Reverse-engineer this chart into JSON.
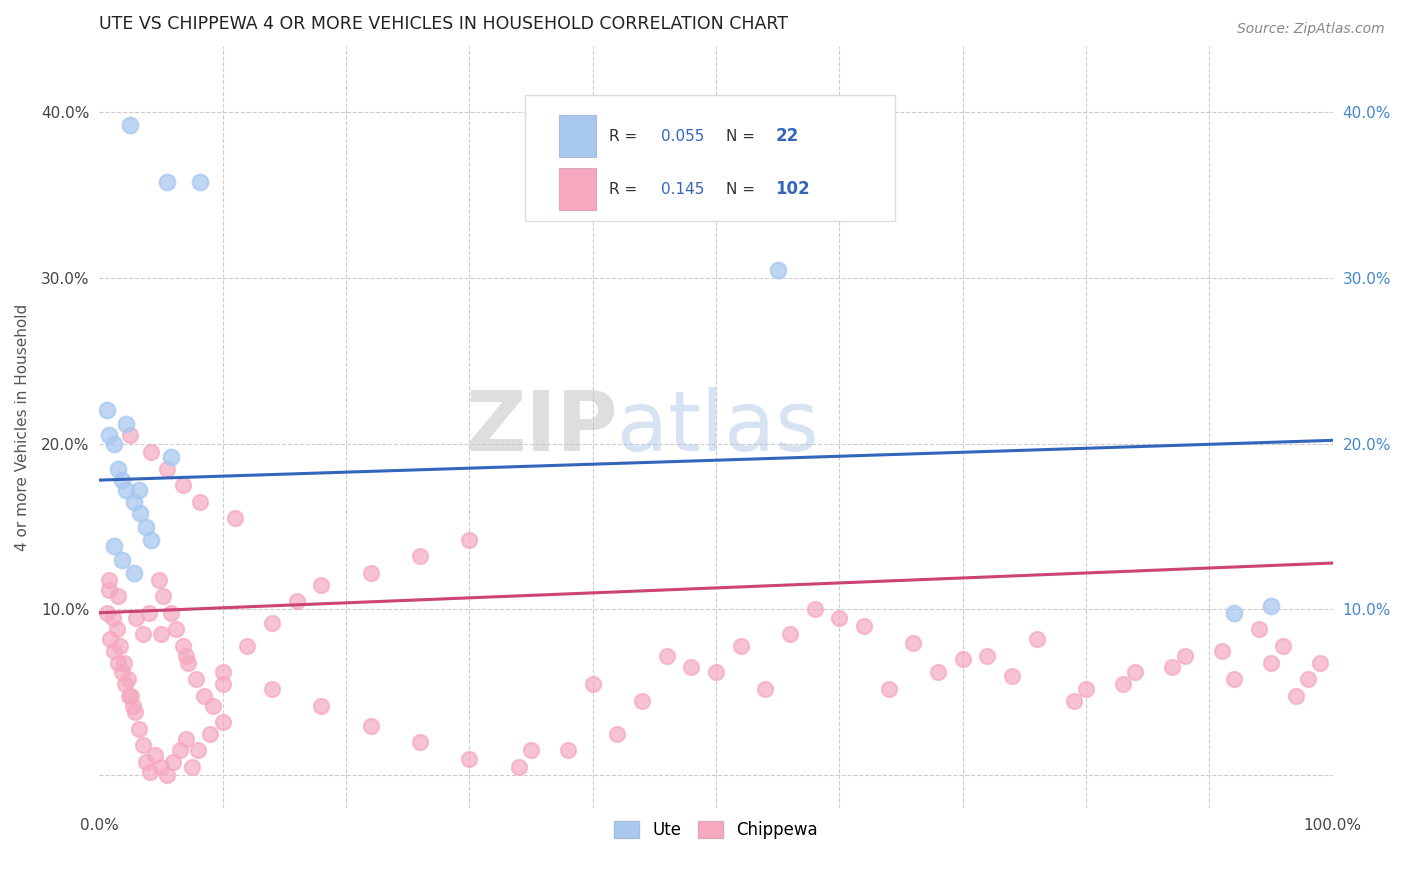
{
  "title": "UTE VS CHIPPEWA 4 OR MORE VEHICLES IN HOUSEHOLD CORRELATION CHART",
  "source": "Source: ZipAtlas.com",
  "ylabel": "4 or more Vehicles in Household",
  "xlim": [
    0,
    1.0
  ],
  "ylim": [
    -0.02,
    0.44
  ],
  "background_color": "#ffffff",
  "grid_color": "#cccccc",
  "legend_R1": "0.055",
  "legend_N1": "22",
  "legend_R2": "0.145",
  "legend_N2": "102",
  "ute_color": "#a8c8f0",
  "chippewa_color": "#f5a8be",
  "ute_line_color": "#3366bb",
  "chippewa_line_color": "#cc4477",
  "ute_line_start": 0.178,
  "ute_line_end": 0.202,
  "chip_line_start": 0.098,
  "chip_line_end": 0.128,
  "ute_x": [
    0.025,
    0.055,
    0.082,
    0.006,
    0.012,
    0.015,
    0.018,
    0.022,
    0.028,
    0.033,
    0.038,
    0.042,
    0.012,
    0.018,
    0.028,
    0.55,
    0.92,
    0.95,
    0.008,
    0.022,
    0.058,
    0.032
  ],
  "ute_y": [
    0.392,
    0.358,
    0.358,
    0.22,
    0.2,
    0.185,
    0.178,
    0.172,
    0.165,
    0.158,
    0.15,
    0.142,
    0.138,
    0.13,
    0.122,
    0.305,
    0.098,
    0.102,
    0.205,
    0.212,
    0.192,
    0.172
  ],
  "chip_x": [
    0.006,
    0.009,
    0.012,
    0.015,
    0.018,
    0.021,
    0.024,
    0.027,
    0.008,
    0.011,
    0.014,
    0.017,
    0.02,
    0.023,
    0.026,
    0.029,
    0.032,
    0.035,
    0.038,
    0.041,
    0.045,
    0.05,
    0.055,
    0.06,
    0.065,
    0.07,
    0.075,
    0.08,
    0.09,
    0.1,
    0.035,
    0.04,
    0.048,
    0.052,
    0.058,
    0.062,
    0.068,
    0.072,
    0.078,
    0.085,
    0.092,
    0.1,
    0.12,
    0.14,
    0.16,
    0.18,
    0.22,
    0.26,
    0.3,
    0.35,
    0.4,
    0.44,
    0.48,
    0.52,
    0.56,
    0.6,
    0.64,
    0.68,
    0.72,
    0.76,
    0.8,
    0.84,
    0.88,
    0.92,
    0.95,
    0.97,
    0.98,
    0.99,
    0.96,
    0.94,
    0.91,
    0.87,
    0.83,
    0.79,
    0.74,
    0.7,
    0.66,
    0.62,
    0.58,
    0.54,
    0.5,
    0.46,
    0.42,
    0.38,
    0.34,
    0.3,
    0.26,
    0.22,
    0.18,
    0.14,
    0.1,
    0.07,
    0.05,
    0.03,
    0.015,
    0.008,
    0.025,
    0.042,
    0.055,
    0.068,
    0.082,
    0.11
  ],
  "chip_y": [
    0.098,
    0.082,
    0.075,
    0.068,
    0.062,
    0.055,
    0.048,
    0.042,
    0.112,
    0.095,
    0.088,
    0.078,
    0.068,
    0.058,
    0.048,
    0.038,
    0.028,
    0.018,
    0.008,
    0.002,
    0.012,
    0.005,
    0.0,
    0.008,
    0.015,
    0.022,
    0.005,
    0.015,
    0.025,
    0.032,
    0.085,
    0.098,
    0.118,
    0.108,
    0.098,
    0.088,
    0.078,
    0.068,
    0.058,
    0.048,
    0.042,
    0.055,
    0.078,
    0.092,
    0.105,
    0.115,
    0.122,
    0.132,
    0.142,
    0.015,
    0.055,
    0.045,
    0.065,
    0.078,
    0.085,
    0.095,
    0.052,
    0.062,
    0.072,
    0.082,
    0.052,
    0.062,
    0.072,
    0.058,
    0.068,
    0.048,
    0.058,
    0.068,
    0.078,
    0.088,
    0.075,
    0.065,
    0.055,
    0.045,
    0.06,
    0.07,
    0.08,
    0.09,
    0.1,
    0.052,
    0.062,
    0.072,
    0.025,
    0.015,
    0.005,
    0.01,
    0.02,
    0.03,
    0.042,
    0.052,
    0.062,
    0.072,
    0.085,
    0.095,
    0.108,
    0.118,
    0.205,
    0.195,
    0.185,
    0.175,
    0.165,
    0.155
  ]
}
